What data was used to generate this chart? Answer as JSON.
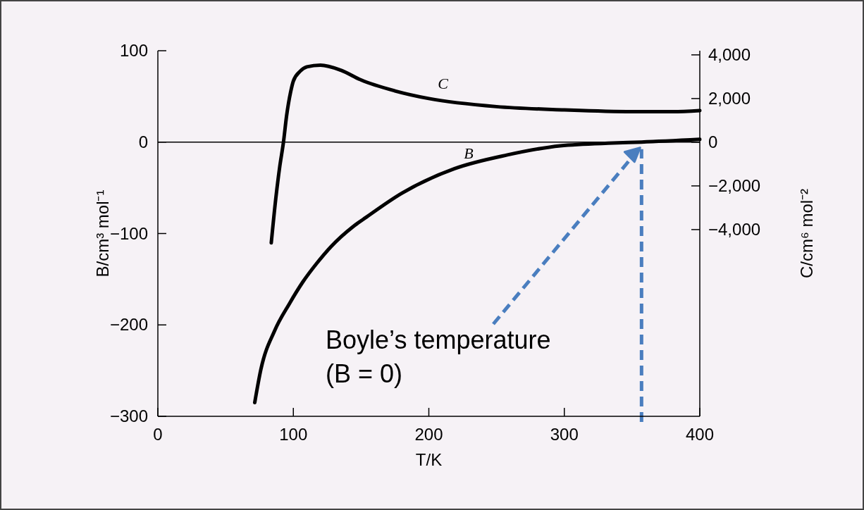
{
  "chart_data": {
    "type": "line",
    "xlabel": "T/K",
    "ylabel": "B/cm³ mol⁻¹",
    "y2label": "C/cm⁶ mol⁻²",
    "xlim": [
      0,
      400
    ],
    "xticks": [
      0,
      100,
      200,
      300,
      400
    ],
    "ylim": [
      -300,
      100
    ],
    "yticks": [
      -300,
      -200,
      -100,
      0,
      100
    ],
    "y2lim": [
      -12550,
      4190
    ],
    "y2ticks": [
      {
        "value": -4000,
        "label": "−4,000"
      },
      {
        "value": -2000,
        "label": "−2,000"
      },
      0,
      {
        "value": 2000,
        "label": "2,000"
      },
      {
        "value": 4000,
        "label": "4,000"
      }
    ],
    "series": [
      {
        "name": "B",
        "color": "#000000",
        "x": [
          71.5,
          76,
          86.3,
          97,
          107,
          117.6,
          128,
          143.6,
          154,
          180,
          219,
          258,
          297,
          336,
          357,
          400
        ],
        "values": [
          -285,
          -249,
          -206,
          -177,
          -153,
          -132,
          -114,
          -93,
          -82,
          -56,
          -29,
          -14,
          -4,
          -1,
          0,
          3
        ]
      },
      {
        "name": "C",
        "color": "#000000",
        "axis": "y2",
        "x": [
          83.7,
          87,
          90,
          92.7,
          95,
          98,
          100,
          105,
          110,
          120,
          135,
          150,
          175,
          200,
          250,
          300,
          350,
          380,
          400
        ],
        "values": [
          -4610,
          -2600,
          -1100,
          0,
          1200,
          2300,
          2800,
          3250,
          3450,
          3530,
          3300,
          2850,
          2350,
          2000,
          1630,
          1480,
          1400,
          1400,
          1450
        ]
      }
    ],
    "ref_lines": [
      {
        "axis": "y",
        "value": 0,
        "color": "#000000",
        "line_style": "solid"
      },
      {
        "axis": "x",
        "value": 357,
        "color": "#4a7ebf",
        "line_style": "dashed"
      }
    ],
    "annotations": [
      "Boyle’s temperature\n(B = 0)"
    ],
    "grid": false,
    "marker": "none",
    "line_style": "solid"
  }
}
